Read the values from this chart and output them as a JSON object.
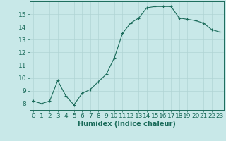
{
  "x": [
    0,
    1,
    2,
    3,
    4,
    5,
    6,
    7,
    8,
    9,
    10,
    11,
    12,
    13,
    14,
    15,
    16,
    17,
    18,
    19,
    20,
    21,
    22,
    23
  ],
  "y": [
    8.2,
    8.0,
    8.2,
    9.8,
    8.6,
    7.9,
    8.8,
    9.1,
    9.7,
    10.3,
    11.6,
    13.5,
    14.3,
    14.7,
    15.5,
    15.6,
    15.6,
    15.6,
    14.7,
    14.6,
    14.5,
    14.3,
    13.8,
    13.6
  ],
  "line_color": "#1a6b5a",
  "marker": "+",
  "marker_size": 3,
  "bg_color": "#c8e8e8",
  "grid_color": "#b0d4d4",
  "xlabel": "Humidex (Indice chaleur)",
  "xlim": [
    -0.5,
    23.5
  ],
  "ylim": [
    7.5,
    16.0
  ],
  "yticks": [
    8,
    9,
    10,
    11,
    12,
    13,
    14,
    15
  ],
  "xticks": [
    0,
    1,
    2,
    3,
    4,
    5,
    6,
    7,
    8,
    9,
    10,
    11,
    12,
    13,
    14,
    15,
    16,
    17,
    18,
    19,
    20,
    21,
    22,
    23
  ],
  "xtick_labels": [
    "0",
    "1",
    "2",
    "3",
    "4",
    "5",
    "6",
    "7",
    "8",
    "9",
    "10",
    "11",
    "12",
    "13",
    "14",
    "15",
    "16",
    "17",
    "18",
    "19",
    "20",
    "21",
    "22",
    "23"
  ],
  "xlabel_fontsize": 7,
  "tick_fontsize": 6.5
}
